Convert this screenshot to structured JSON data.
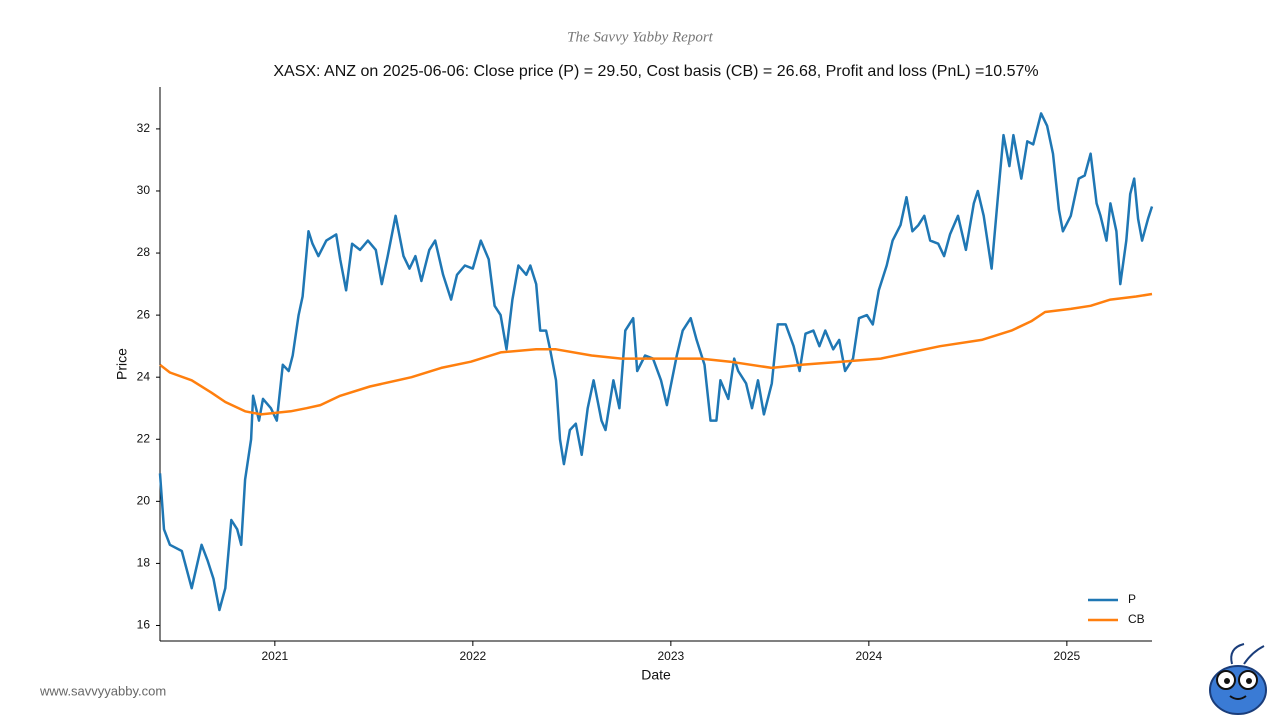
{
  "brand": "The Savvy Yabby Report",
  "website": "www.savvyyabby.com",
  "chart_data": {
    "type": "line",
    "title": "XASX: ANZ on 2025-06-06: Close price (P) = 29.50, Cost basis (CB) = 26.68, Profit and loss (PnL) =10.57%",
    "xlabel": "Date",
    "ylabel": "Price",
    "xlim": [
      2020.42,
      2025.43
    ],
    "xticks": [
      2021,
      2022,
      2023,
      2024,
      2025
    ],
    "ylim": [
      15.5,
      33.35
    ],
    "yticks": [
      16,
      18,
      20,
      22,
      24,
      26,
      28,
      30,
      32
    ],
    "legend": "lower right",
    "series": [
      {
        "name": "P",
        "color": "#1f77b4",
        "x": [
          2020.42,
          2020.44,
          2020.47,
          2020.53,
          2020.58,
          2020.63,
          2020.66,
          2020.69,
          2020.72,
          2020.75,
          2020.78,
          2020.81,
          2020.83,
          2020.85,
          2020.88,
          2020.89,
          2020.92,
          2020.94,
          2020.98,
          2021.01,
          2021.04,
          2021.07,
          2021.09,
          2021.12,
          2021.14,
          2021.17,
          2021.19,
          2021.22,
          2021.26,
          2021.31,
          2021.33,
          2021.36,
          2021.39,
          2021.43,
          2021.47,
          2021.51,
          2021.54,
          2021.57,
          2021.61,
          2021.65,
          2021.68,
          2021.71,
          2021.74,
          2021.78,
          2021.81,
          2021.85,
          2021.89,
          2021.92,
          2021.96,
          2022.0,
          2022.04,
          2022.08,
          2022.11,
          2022.14,
          2022.17,
          2022.2,
          2022.23,
          2022.27,
          2022.29,
          2022.32,
          2022.34,
          2022.37,
          2022.39,
          2022.42,
          2022.44,
          2022.46,
          2022.49,
          2022.52,
          2022.55,
          2022.58,
          2022.61,
          2022.65,
          2022.67,
          2022.71,
          2022.74,
          2022.77,
          2022.81,
          2022.83,
          2022.87,
          2022.91,
          2022.95,
          2022.98,
          2023.03,
          2023.06,
          2023.1,
          2023.13,
          2023.17,
          2023.2,
          2023.23,
          2023.25,
          2023.29,
          2023.32,
          2023.34,
          2023.38,
          2023.41,
          2023.44,
          2023.47,
          2023.51,
          2023.54,
          2023.58,
          2023.62,
          2023.65,
          2023.68,
          2023.72,
          2023.75,
          2023.78,
          2023.82,
          2023.85,
          2023.88,
          2023.92,
          2023.95,
          2023.99,
          2024.02,
          2024.05,
          2024.09,
          2024.12,
          2024.16,
          2024.19,
          2024.22,
          2024.25,
          2024.28,
          2024.31,
          2024.35,
          2024.38,
          2024.41,
          2024.45,
          2024.49,
          2024.53,
          2024.55,
          2024.58,
          2024.62,
          2024.65,
          2024.68,
          2024.71,
          2024.73,
          2024.77,
          2024.8,
          2024.83,
          2024.87,
          2024.9,
          2024.93,
          2024.96,
          2024.98,
          2025.02,
          2025.06,
          2025.09,
          2025.12,
          2025.15,
          2025.17,
          2025.2,
          2025.22,
          2025.25,
          2025.27,
          2025.3,
          2025.32,
          2025.34,
          2025.36,
          2025.38,
          2025.41,
          2025.43
        ],
        "values": [
          20.9,
          19.1,
          18.6,
          18.4,
          17.2,
          18.6,
          18.1,
          17.5,
          16.5,
          17.2,
          19.4,
          19.1,
          18.6,
          20.7,
          22.0,
          23.4,
          22.6,
          23.3,
          23.0,
          22.6,
          24.4,
          24.2,
          24.7,
          26.0,
          26.6,
          28.7,
          28.3,
          27.9,
          28.4,
          28.6,
          27.8,
          26.8,
          28.3,
          28.1,
          28.4,
          28.1,
          27.0,
          27.9,
          29.2,
          27.9,
          27.5,
          27.9,
          27.1,
          28.1,
          28.4,
          27.3,
          26.5,
          27.3,
          27.6,
          27.5,
          28.4,
          27.8,
          26.3,
          26.0,
          24.9,
          26.5,
          27.6,
          27.3,
          27.6,
          27.0,
          25.5,
          25.5,
          24.9,
          23.9,
          22.0,
          21.2,
          22.3,
          22.5,
          21.5,
          23.0,
          23.9,
          22.6,
          22.3,
          23.9,
          23.0,
          25.5,
          25.9,
          24.2,
          24.7,
          24.6,
          23.9,
          23.1,
          24.7,
          25.5,
          25.9,
          25.2,
          24.4,
          22.6,
          22.6,
          23.9,
          23.3,
          24.6,
          24.2,
          23.8,
          23.0,
          23.9,
          22.8,
          23.8,
          25.7,
          25.7,
          25.0,
          24.2,
          25.4,
          25.5,
          25.0,
          25.5,
          24.9,
          25.2,
          24.2,
          24.6,
          25.9,
          26.0,
          25.7,
          26.8,
          27.6,
          28.4,
          28.9,
          29.8,
          28.7,
          28.9,
          29.2,
          28.4,
          28.3,
          27.9,
          28.6,
          29.2,
          28.1,
          29.6,
          30.0,
          29.2,
          27.5,
          29.7,
          31.8,
          30.8,
          31.8,
          30.4,
          31.6,
          31.5,
          32.5,
          32.1,
          31.2,
          29.4,
          28.7,
          29.2,
          30.4,
          30.5,
          31.2,
          29.6,
          29.2,
          28.4,
          29.6,
          28.7,
          27.0,
          28.4,
          29.9,
          30.4,
          29.1,
          28.4,
          29.1,
          29.5
        ]
      },
      {
        "name": "CB",
        "color": "#ff7f0e",
        "x": [
          2020.42,
          2020.47,
          2020.58,
          2020.68,
          2020.75,
          2020.85,
          2020.93,
          2021.08,
          2021.16,
          2021.23,
          2021.33,
          2021.48,
          2021.69,
          2021.84,
          2021.99,
          2022.14,
          2022.32,
          2022.42,
          2022.6,
          2022.75,
          2022.95,
          2023.15,
          2023.3,
          2023.51,
          2023.66,
          2023.86,
          2024.06,
          2024.21,
          2024.36,
          2024.57,
          2024.72,
          2024.82,
          2024.89,
          2025.02,
          2025.12,
          2025.22,
          2025.35,
          2025.43
        ],
        "values": [
          24.4,
          24.15,
          23.9,
          23.5,
          23.2,
          22.9,
          22.8,
          22.9,
          23.0,
          23.1,
          23.4,
          23.7,
          24.0,
          24.3,
          24.5,
          24.8,
          24.9,
          24.9,
          24.7,
          24.6,
          24.6,
          24.6,
          24.5,
          24.3,
          24.4,
          24.5,
          24.6,
          24.8,
          25.0,
          25.2,
          25.5,
          25.8,
          26.1,
          26.2,
          26.3,
          26.5,
          26.6,
          26.68
        ]
      }
    ]
  }
}
